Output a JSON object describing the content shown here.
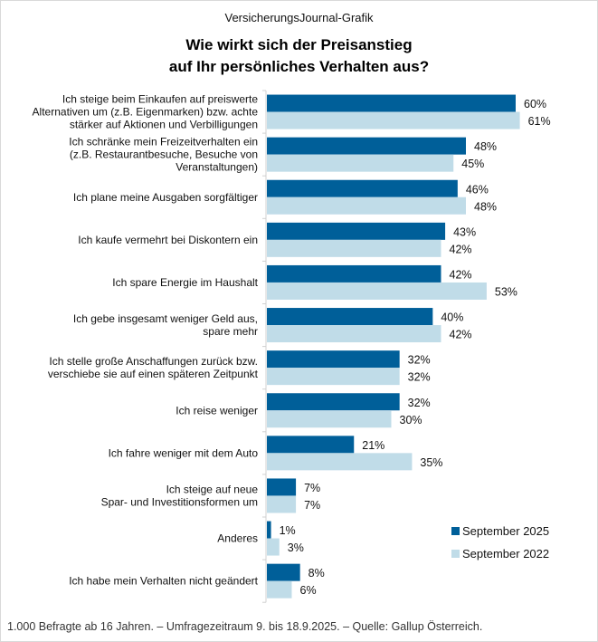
{
  "header": {
    "kicker": "VersicherungsJournal-Grafik",
    "title_line1": "Wie wirkt sich der Preisanstieg",
    "title_line2": "auf Ihr persönliches Verhalten aus?"
  },
  "footer": {
    "source": "1.000 Befragte ab 16 Jahren. – Umfragezeitraum 9. bis 18.9.2025. – Quelle: Gallup Österreich."
  },
  "chart_data": {
    "type": "bar",
    "orientation": "horizontal",
    "title": "Wie wirkt sich der Preisanstieg auf Ihr persönliches Verhalten aus?",
    "xlabel": "",
    "ylabel": "",
    "unit": "%",
    "xlim": [
      0,
      70
    ],
    "grid": false,
    "legend_position": "bottom-right",
    "categories": [
      [
        "Ich steige beim Einkaufen auf preiswerte",
        "Alternativen um (z.B. Eigenmarken) bzw. achte",
        "stärker auf Aktionen und Verbilligungen"
      ],
      [
        "Ich schränke mein Freizeitverhalten ein",
        "(z.B. Restaurantbesuche, Besuche von",
        "Veranstaltungen)"
      ],
      [
        "Ich plane meine Ausgaben sorgfältiger"
      ],
      [
        "Ich kaufe vermehrt bei Diskontern ein"
      ],
      [
        "Ich spare Energie im Haushalt"
      ],
      [
        "Ich gebe insgesamt weniger Geld aus,",
        "spare mehr"
      ],
      [
        "Ich stelle große Anschaffungen zurück bzw.",
        "verschiebe sie auf einen späteren Zeitpunkt"
      ],
      [
        "Ich reise weniger"
      ],
      [
        "Ich fahre weniger mit dem Auto"
      ],
      [
        "Ich steige auf neue",
        "Spar- und Investitionsformen um"
      ],
      [
        "Anderes"
      ],
      [
        "Ich habe mein Verhalten nicht geändert"
      ]
    ],
    "series": [
      {
        "name": "September 2025",
        "color": "#005f99",
        "values": [
          60,
          48,
          46,
          43,
          42,
          40,
          32,
          32,
          21,
          7,
          1,
          8
        ]
      },
      {
        "name": "September 2022",
        "color": "#c0dce8",
        "values": [
          61,
          45,
          48,
          42,
          53,
          42,
          32,
          30,
          35,
          7,
          3,
          6
        ]
      }
    ]
  }
}
